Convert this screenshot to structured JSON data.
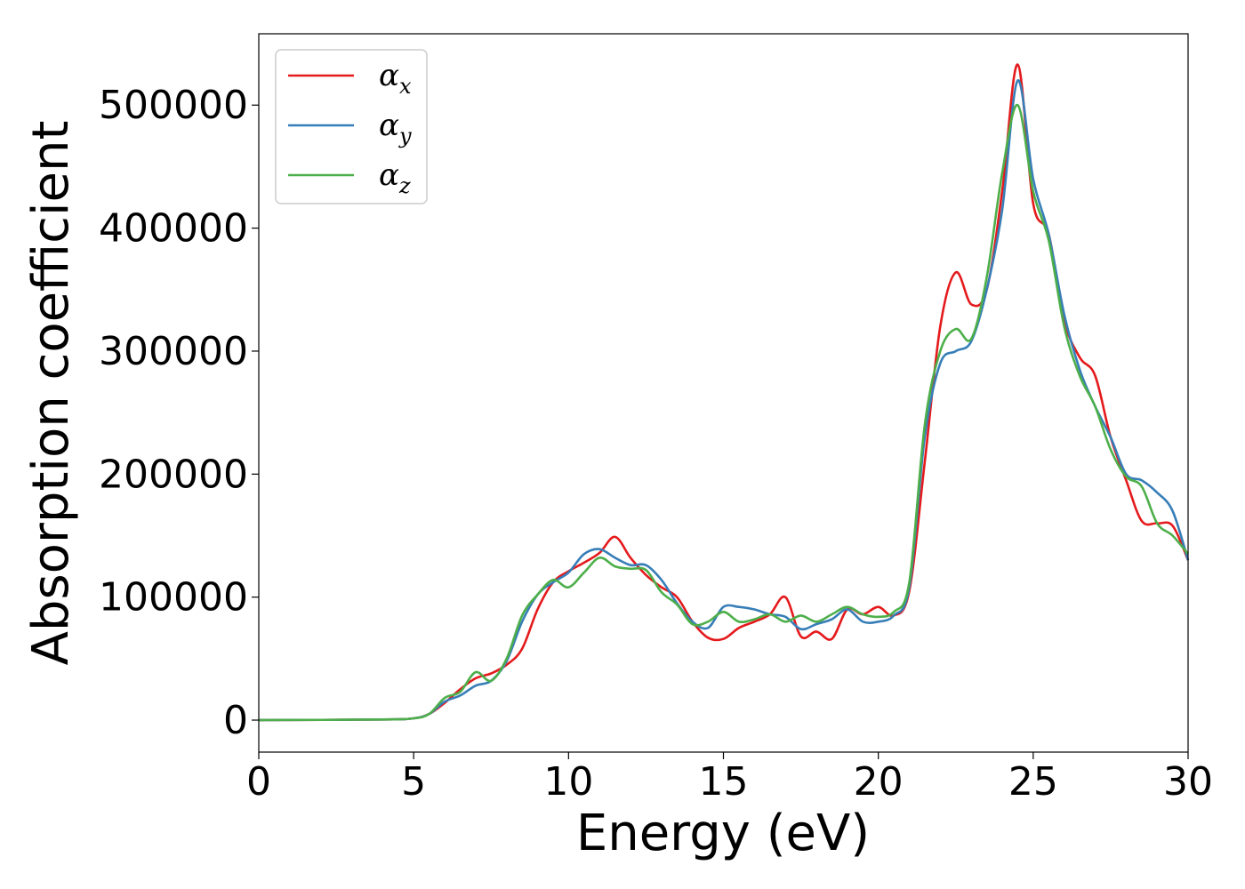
{
  "chart_data": {
    "type": "line",
    "title": "",
    "xlabel": "Energy (eV)",
    "ylabel": "Absorption coefficient",
    "xlim": [
      0,
      30
    ],
    "ylim": [
      -26000,
      558000
    ],
    "xticks": [
      0,
      5,
      10,
      15,
      20,
      25,
      30
    ],
    "yticks": [
      0,
      100000,
      200000,
      300000,
      400000,
      500000
    ],
    "grid": false,
    "legend_position": "top-left",
    "series": [
      {
        "name": "α_x",
        "legend_base": "α",
        "legend_sub": "x",
        "color": "#e41a1c",
        "x": [
          0,
          4,
          5,
          5.5,
          6,
          6.5,
          7,
          7.5,
          8,
          8.5,
          9,
          9.5,
          10,
          10.5,
          11,
          11.5,
          12,
          12.5,
          13,
          13.5,
          14,
          14.5,
          15,
          15.5,
          16,
          16.5,
          17,
          17.5,
          18,
          18.5,
          19,
          19.5,
          20,
          20.5,
          21,
          21.5,
          22,
          22.5,
          23,
          23.5,
          24,
          24.5,
          25,
          25.5,
          26,
          26.5,
          27,
          27.5,
          28,
          28.5,
          29,
          29.5,
          30
        ],
        "values": [
          0,
          500,
          1500,
          5000,
          14000,
          25000,
          34000,
          38000,
          45000,
          58000,
          90000,
          112000,
          121000,
          128000,
          136000,
          149000,
          132000,
          118000,
          108000,
          100000,
          80000,
          67000,
          66000,
          75000,
          80000,
          86000,
          100000,
          68000,
          72000,
          66000,
          90000,
          86000,
          92000,
          85000,
          105000,
          210000,
          320000,
          364000,
          338000,
          350000,
          430000,
          533000,
          420000,
          395000,
          325000,
          295000,
          280000,
          230000,
          195000,
          162000,
          160000,
          158000,
          130000
        ]
      },
      {
        "name": "α_y",
        "legend_base": "α",
        "legend_sub": "y",
        "color": "#377eb8",
        "x": [
          0,
          4,
          5,
          5.5,
          6,
          6.5,
          7,
          7.5,
          8,
          8.5,
          9,
          9.5,
          10,
          10.5,
          11,
          11.5,
          12,
          12.5,
          13,
          13.5,
          14,
          14.5,
          15,
          15.5,
          16,
          16.5,
          17,
          17.5,
          18,
          18.5,
          19,
          19.5,
          20,
          20.5,
          21,
          21.5,
          22,
          22.5,
          23,
          23.5,
          24,
          24.5,
          25,
          25.5,
          26,
          26.5,
          27,
          27.5,
          28,
          28.5,
          29,
          29.5,
          30
        ],
        "values": [
          0,
          500,
          1500,
          5000,
          15000,
          20000,
          28000,
          32000,
          48000,
          80000,
          102000,
          112000,
          120000,
          135000,
          139000,
          132000,
          126000,
          126000,
          114000,
          95000,
          80000,
          75000,
          92000,
          92000,
          90000,
          86000,
          84000,
          74000,
          78000,
          82000,
          90000,
          80000,
          80000,
          85000,
          108000,
          230000,
          290000,
          300000,
          308000,
          350000,
          415000,
          520000,
          440000,
          395000,
          330000,
          285000,
          255000,
          230000,
          200000,
          195000,
          185000,
          170000,
          130000
        ]
      },
      {
        "name": "α_z",
        "legend_base": "α",
        "legend_sub": "z",
        "color": "#4daf4a",
        "x": [
          0,
          4,
          5,
          5.5,
          6,
          6.5,
          7,
          7.5,
          8,
          8.5,
          9,
          9.5,
          10,
          10.5,
          11,
          11.5,
          12,
          12.5,
          13,
          13.5,
          14,
          14.5,
          15,
          15.5,
          16,
          16.5,
          17,
          17.5,
          18,
          18.5,
          19,
          19.5,
          20,
          20.5,
          21,
          21.5,
          22,
          22.5,
          23,
          23.5,
          24,
          24.5,
          25,
          25.5,
          26,
          26.5,
          27,
          27.5,
          28,
          28.5,
          29,
          29.5,
          30
        ],
        "values": [
          0,
          500,
          1500,
          5000,
          18000,
          23000,
          39000,
          32000,
          50000,
          85000,
          102000,
          114000,
          108000,
          120000,
          132000,
          125000,
          123000,
          122000,
          104000,
          94000,
          78000,
          80000,
          88000,
          80000,
          82000,
          86000,
          80000,
          85000,
          80000,
          86000,
          92000,
          86000,
          84000,
          88000,
          112000,
          240000,
          300000,
          318000,
          310000,
          360000,
          445000,
          500000,
          430000,
          390000,
          320000,
          280000,
          255000,
          220000,
          198000,
          190000,
          160000,
          150000,
          135000
        ]
      }
    ]
  }
}
